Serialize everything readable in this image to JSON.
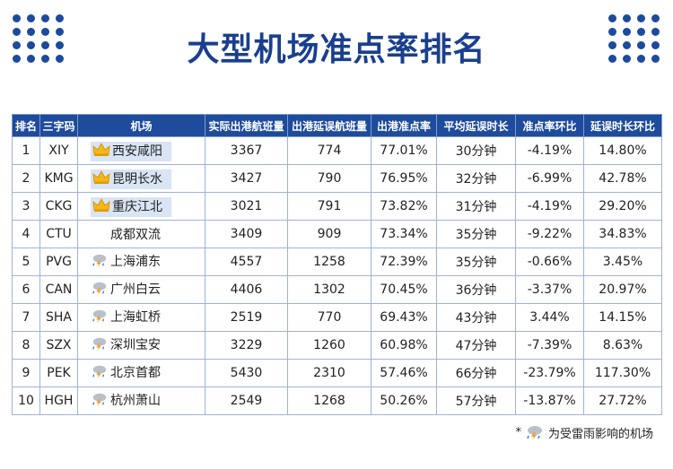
{
  "title": "大型机场准点率排名",
  "table": {
    "header": [
      "排名",
      "三字码",
      "机场",
      "实际出港航班量",
      "出港延误航班量",
      "出港准点率",
      "平均延误时长",
      "准点率环比",
      "延误时长环比"
    ],
    "rows": [
      [
        "1",
        "XIY",
        "西安咸阳",
        "3367",
        "774",
        "77.01%",
        "30分钟",
        "-4.19%",
        "14.80%"
      ],
      [
        "2",
        "KMG",
        "昆明长水",
        "3427",
        "790",
        "76.95%",
        "32分钟",
        "-6.99%",
        "42.78%"
      ],
      [
        "3",
        "CKG",
        "重庆江北",
        "3021",
        "791",
        "73.82%",
        "31分钟",
        "-4.19%",
        "29.20%"
      ],
      [
        "4",
        "CTU",
        "成都双流",
        "3409",
        "909",
        "73.34%",
        "35分钟",
        "-9.22%",
        "34.83%"
      ],
      [
        "5",
        "PVG",
        "上海浦东",
        "4557",
        "1258",
        "72.39%",
        "35分钟",
        "-0.66%",
        "3.45%"
      ],
      [
        "6",
        "CAN",
        "广州白云",
        "4406",
        "1302",
        "70.45%",
        "36分钟",
        "-3.37%",
        "20.97%"
      ],
      [
        "7",
        "SHA",
        "上海虹桥",
        "2519",
        "770",
        "69.43%",
        "43分钟",
        "3.44%",
        "14.15%"
      ],
      [
        "8",
        "SZX",
        "深圳宝安",
        "3229",
        "1260",
        "60.98%",
        "47分钟",
        "-7.39%",
        "8.63%"
      ],
      [
        "9",
        "PEK",
        "北京首都",
        "5430",
        "2310",
        "57.46%",
        "66分钟",
        "-23.79%",
        "117.30%"
      ],
      [
        "10",
        "HGH",
        "杭州萧山",
        "2549",
        "1268",
        "50.26%",
        "57分钟",
        "-13.87%",
        "27.72%"
      ]
    ]
  },
  "footnote": {
    "mark": "*",
    "text": "为受雷雨影响的机场"
  }
}
